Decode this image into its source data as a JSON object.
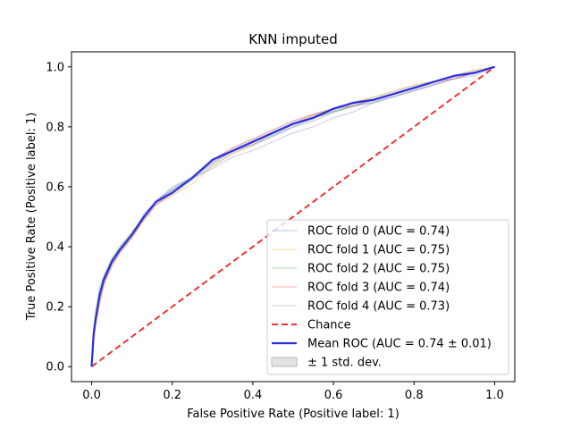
{
  "chart_data": {
    "type": "line",
    "title": "KNN imputed",
    "xlabel": "False Positive Rate (Positive label: 1)",
    "ylabel": "True Positive Rate (Positive label: 1)",
    "xlim": [
      -0.05,
      1.05
    ],
    "ylim": [
      -0.05,
      1.05
    ],
    "xticks": [
      "0.0",
      "0.2",
      "0.4",
      "0.6",
      "0.8",
      "1.0"
    ],
    "yticks": [
      "0.0",
      "0.2",
      "0.4",
      "0.6",
      "0.8",
      "1.0"
    ],
    "grid": false,
    "legend_position": "lower-right",
    "series": [
      {
        "name": "ROC fold 0 (AUC = 0.74)",
        "color": "#4f7fd6",
        "style": "thin",
        "x": [
          0,
          0.005,
          0.01,
          0.02,
          0.03,
          0.05,
          0.07,
          0.1,
          0.13,
          0.16,
          0.2,
          0.25,
          0.3,
          0.35,
          0.4,
          0.45,
          0.5,
          0.55,
          0.6,
          0.65,
          0.7,
          0.75,
          0.8,
          0.85,
          0.9,
          0.95,
          1.0
        ],
        "y": [
          0,
          0.12,
          0.17,
          0.24,
          0.29,
          0.35,
          0.39,
          0.44,
          0.51,
          0.55,
          0.6,
          0.63,
          0.68,
          0.72,
          0.74,
          0.77,
          0.8,
          0.83,
          0.85,
          0.87,
          0.88,
          0.9,
          0.92,
          0.94,
          0.96,
          0.98,
          1.0
        ]
      },
      {
        "name": "ROC fold 1 (AUC = 0.75)",
        "color": "#f5a623",
        "style": "thin",
        "x": [
          0,
          0.005,
          0.01,
          0.02,
          0.03,
          0.05,
          0.07,
          0.1,
          0.13,
          0.16,
          0.2,
          0.25,
          0.3,
          0.35,
          0.4,
          0.45,
          0.5,
          0.55,
          0.6,
          0.65,
          0.7,
          0.75,
          0.8,
          0.85,
          0.9,
          0.95,
          1.0
        ],
        "y": [
          0,
          0.1,
          0.15,
          0.22,
          0.28,
          0.33,
          0.38,
          0.43,
          0.49,
          0.54,
          0.57,
          0.61,
          0.67,
          0.71,
          0.74,
          0.78,
          0.81,
          0.84,
          0.86,
          0.88,
          0.9,
          0.92,
          0.94,
          0.95,
          0.97,
          0.99,
          1.0
        ]
      },
      {
        "name": "ROC fold 2 (AUC = 0.75)",
        "color": "#3fae4a",
        "style": "thin",
        "x": [
          0,
          0.005,
          0.01,
          0.02,
          0.03,
          0.05,
          0.07,
          0.1,
          0.13,
          0.16,
          0.2,
          0.25,
          0.3,
          0.35,
          0.4,
          0.45,
          0.5,
          0.55,
          0.6,
          0.65,
          0.7,
          0.75,
          0.8,
          0.85,
          0.9,
          0.95,
          1.0
        ],
        "y": [
          0,
          0.13,
          0.19,
          0.27,
          0.3,
          0.36,
          0.4,
          0.45,
          0.5,
          0.55,
          0.59,
          0.63,
          0.69,
          0.72,
          0.75,
          0.78,
          0.81,
          0.83,
          0.85,
          0.87,
          0.89,
          0.91,
          0.93,
          0.95,
          0.97,
          0.98,
          1.0
        ]
      },
      {
        "name": "ROC fold 3 (AUC = 0.74)",
        "color": "#e0444e",
        "style": "thin",
        "x": [
          0,
          0.005,
          0.01,
          0.02,
          0.03,
          0.05,
          0.07,
          0.1,
          0.13,
          0.16,
          0.2,
          0.25,
          0.3,
          0.35,
          0.4,
          0.45,
          0.5,
          0.55,
          0.6,
          0.65,
          0.7,
          0.75,
          0.8,
          0.85,
          0.9,
          0.95,
          1.0
        ],
        "y": [
          0,
          0.08,
          0.14,
          0.21,
          0.27,
          0.34,
          0.38,
          0.43,
          0.49,
          0.54,
          0.58,
          0.63,
          0.69,
          0.73,
          0.76,
          0.79,
          0.82,
          0.84,
          0.86,
          0.87,
          0.89,
          0.91,
          0.93,
          0.95,
          0.96,
          0.98,
          1.0
        ]
      },
      {
        "name": "ROC fold 4 (AUC = 0.73)",
        "color": "#9a7fd1",
        "style": "thin",
        "x": [
          0,
          0.005,
          0.01,
          0.02,
          0.03,
          0.05,
          0.07,
          0.1,
          0.13,
          0.16,
          0.2,
          0.25,
          0.3,
          0.35,
          0.4,
          0.45,
          0.5,
          0.55,
          0.6,
          0.65,
          0.7,
          0.75,
          0.8,
          0.85,
          0.9,
          0.95,
          1.0
        ],
        "y": [
          0,
          0.11,
          0.16,
          0.23,
          0.28,
          0.34,
          0.38,
          0.44,
          0.5,
          0.55,
          0.59,
          0.63,
          0.66,
          0.7,
          0.72,
          0.75,
          0.78,
          0.8,
          0.83,
          0.85,
          0.88,
          0.9,
          0.92,
          0.94,
          0.96,
          0.97,
          1.0
        ]
      },
      {
        "name": "Chance",
        "color": "#ee3333",
        "style": "dashed",
        "x": [
          0,
          1
        ],
        "y": [
          0,
          1
        ]
      },
      {
        "name": "Mean ROC (AUC = 0.74 ± 0.01)",
        "color": "#2a2ee0",
        "style": "thick",
        "x": [
          0,
          0.005,
          0.01,
          0.02,
          0.03,
          0.05,
          0.07,
          0.1,
          0.13,
          0.16,
          0.2,
          0.25,
          0.3,
          0.35,
          0.4,
          0.45,
          0.5,
          0.55,
          0.6,
          0.65,
          0.7,
          0.75,
          0.8,
          0.85,
          0.9,
          0.95,
          1.0
        ],
        "y": [
          0,
          0.11,
          0.16,
          0.24,
          0.29,
          0.35,
          0.39,
          0.44,
          0.5,
          0.55,
          0.58,
          0.63,
          0.69,
          0.72,
          0.75,
          0.78,
          0.81,
          0.83,
          0.86,
          0.88,
          0.89,
          0.91,
          0.93,
          0.95,
          0.97,
          0.98,
          1.0
        ]
      }
    ],
    "band": {
      "name": "± 1 std. dev.",
      "color": "#cccccc",
      "x": [
        0,
        0.005,
        0.01,
        0.02,
        0.03,
        0.05,
        0.07,
        0.1,
        0.13,
        0.16,
        0.2,
        0.25,
        0.3,
        0.35,
        0.4,
        0.45,
        0.5,
        0.55,
        0.6,
        0.65,
        0.7,
        0.75,
        0.8,
        0.85,
        0.9,
        0.95,
        1.0
      ],
      "lower": [
        0,
        0.09,
        0.14,
        0.22,
        0.27,
        0.335,
        0.38,
        0.43,
        0.49,
        0.54,
        0.57,
        0.62,
        0.665,
        0.71,
        0.735,
        0.765,
        0.795,
        0.815,
        0.845,
        0.865,
        0.88,
        0.9,
        0.92,
        0.94,
        0.96,
        0.975,
        1.0
      ],
      "upper": [
        0,
        0.13,
        0.18,
        0.26,
        0.31,
        0.365,
        0.4,
        0.45,
        0.51,
        0.56,
        0.595,
        0.64,
        0.695,
        0.73,
        0.76,
        0.79,
        0.82,
        0.845,
        0.865,
        0.885,
        0.9,
        0.92,
        0.94,
        0.955,
        0.975,
        0.99,
        1.0
      ]
    }
  }
}
